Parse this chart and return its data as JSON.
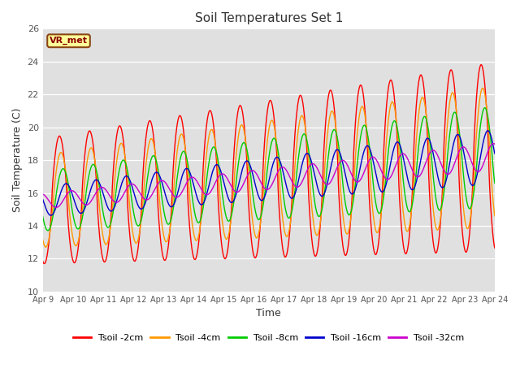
{
  "title": "Soil Temperatures Set 1",
  "xlabel": "Time",
  "ylabel": "Soil Temperature (C)",
  "ylim": [
    10,
    26
  ],
  "xlim_days": [
    0,
    15
  ],
  "annotation": "VR_met",
  "plot_bg_color": "#e0e0e0",
  "series": [
    {
      "label": "Tsoil -2cm",
      "color": "#ff0000"
    },
    {
      "label": "Tsoil -4cm",
      "color": "#ff9900"
    },
    {
      "label": "Tsoil -8cm",
      "color": "#00cc00"
    },
    {
      "label": "Tsoil -16cm",
      "color": "#0000cc"
    },
    {
      "label": "Tsoil -32cm",
      "color": "#cc00cc"
    }
  ],
  "xtick_labels": [
    "Apr 9",
    "Apr 10",
    "Apr 11",
    "Apr 12",
    "Apr 13",
    "Apr 14",
    "Apr 15",
    "Apr 16",
    "Apr 17",
    "Apr 18",
    "Apr 19",
    "Apr 20",
    "Apr 21",
    "Apr 22",
    "Apr 23",
    "Apr 24"
  ],
  "xtick_positions": [
    0,
    1,
    2,
    3,
    4,
    5,
    6,
    7,
    8,
    9,
    10,
    11,
    12,
    13,
    14,
    15
  ],
  "yticks": [
    10,
    12,
    14,
    16,
    18,
    20,
    22,
    24,
    26
  ]
}
